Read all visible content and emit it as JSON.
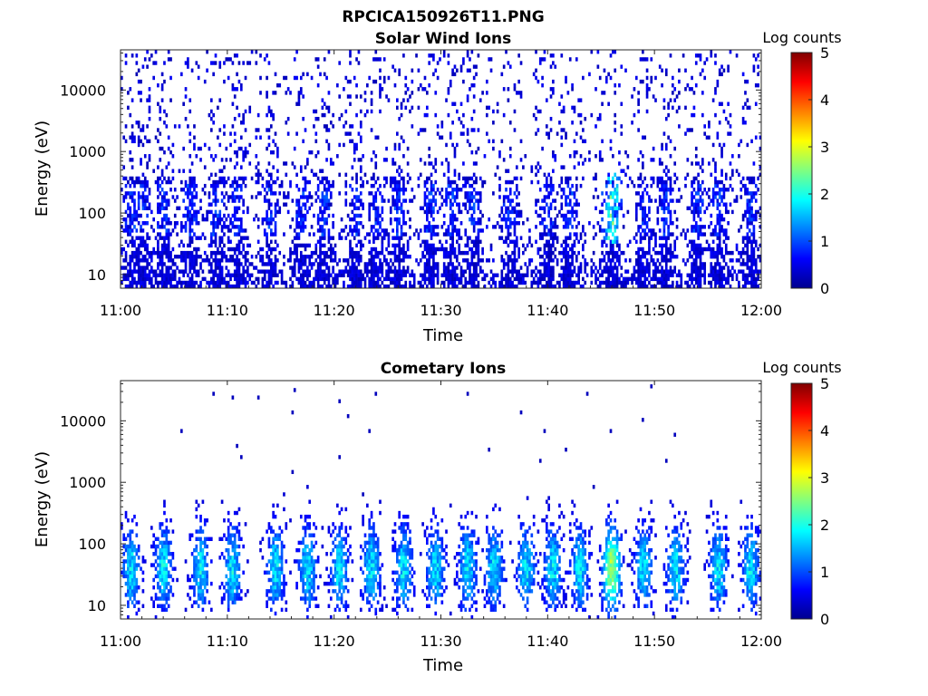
{
  "figure_title": "RPCICA150926T11.PNG",
  "chart_data": [
    {
      "type": "heatmap",
      "title": "Solar Wind Ions",
      "xlabel": "Time",
      "ylabel": "Energy (eV)",
      "x_ticks": [
        "11:00",
        "11:10",
        "11:20",
        "11:30",
        "11:40",
        "11:50",
        "12:00"
      ],
      "x_range": [
        "11:00",
        "12:00"
      ],
      "y_scale": "log",
      "y_ticks": [
        "10",
        "100",
        "1000",
        "10000"
      ],
      "y_range": [
        6,
        45000
      ],
      "colorbar": {
        "label": "Log counts",
        "ticks": [
          "0",
          "1",
          "2",
          "3",
          "4",
          "5"
        ],
        "range": [
          0,
          5
        ],
        "colormap": "jet"
      },
      "pattern": {
        "background_level": 0.35,
        "sparse_high_energy_counts": true,
        "bursts_minutes": [
          1,
          2,
          4,
          6.5,
          9,
          11,
          14,
          17,
          19,
          22,
          24,
          26,
          29,
          31,
          33,
          36.5,
          40,
          42,
          46,
          49,
          51,
          54,
          56,
          59
        ],
        "peak_burst_minute": 46,
        "peak_log_counts": 1.8
      }
    },
    {
      "type": "heatmap",
      "title": "Cometary Ions",
      "xlabel": "Time",
      "ylabel": "Energy (eV)",
      "x_ticks": [
        "11:00",
        "11:10",
        "11:20",
        "11:30",
        "11:40",
        "11:50",
        "12:00"
      ],
      "x_range": [
        "11:00",
        "12:00"
      ],
      "y_scale": "log",
      "y_ticks": [
        "10",
        "100",
        "1000",
        "10000"
      ],
      "y_range": [
        6,
        45000
      ],
      "colorbar": {
        "label": "Log counts",
        "ticks": [
          "0",
          "1",
          "2",
          "3",
          "4",
          "5"
        ],
        "range": [
          0,
          5
        ],
        "colormap": "jet"
      },
      "pattern": {
        "band_energy_eV": [
          8,
          500
        ],
        "band_center_eV": 40,
        "bursts_minutes": [
          1,
          4,
          7.5,
          10.5,
          14.5,
          17.5,
          20.5,
          23.5,
          26.5,
          29.5,
          32.5,
          35,
          38,
          40.5,
          43,
          46,
          49,
          52,
          56,
          59
        ],
        "peak_burst_minute": 46,
        "peak_log_counts": 3.0
      }
    }
  ]
}
